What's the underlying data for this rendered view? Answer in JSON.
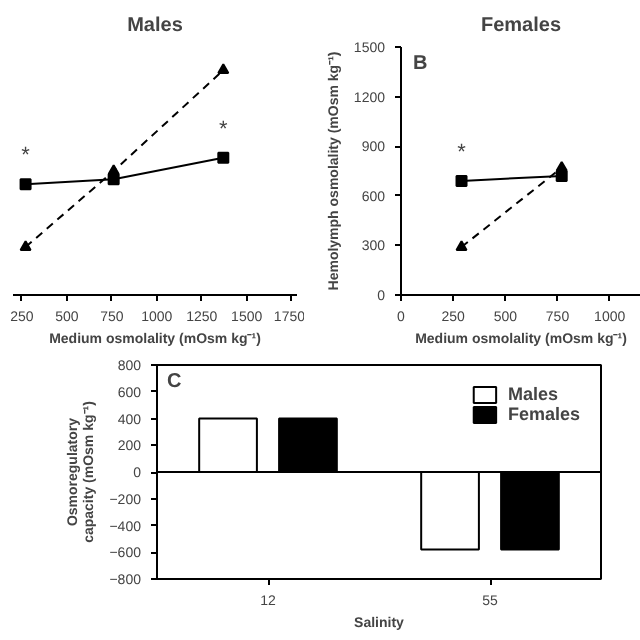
{
  "chart_data": [
    {
      "type": "line",
      "title": "Males",
      "xlabel": "Medium osmolality (mOsm kg⁻¹)",
      "xlim": [
        200,
        1780
      ],
      "xticks": [
        250,
        500,
        750,
        1000,
        1250,
        1500,
        1750
      ],
      "ylim": [
        0,
        1500
      ],
      "tick_labels": "x",
      "grid": false,
      "series": [
        {
          "color": "#000000",
          "marker": "square",
          "line_style": "solid",
          "x": [
            270,
            760,
            1370
          ],
          "values": [
            670,
            700,
            830
          ]
        },
        {
          "color": "#000000",
          "marker": "triangle",
          "line_style": "dashed",
          "x": [
            270,
            760,
            1370
          ],
          "values": [
            290,
            750,
            1360
          ]
        }
      ],
      "annotations": [
        {
          "text": "*",
          "x": 270,
          "y": 670
        },
        {
          "text": "*",
          "x": 1370,
          "y": 830
        }
      ]
    },
    {
      "type": "line",
      "title": "Females",
      "xlabel": "Medium osmolality (mOsm kg⁻¹)",
      "ylabel": "Hemolymph osmolality (mOsm kg⁻¹)",
      "xlim": [
        0,
        1150
      ],
      "xticks": [
        0,
        250,
        500,
        750,
        1000
      ],
      "ylim": [
        0,
        1500
      ],
      "yticks": [
        0,
        300,
        600,
        900,
        1200,
        1500
      ],
      "grid": false,
      "series": [
        {
          "color": "#000000",
          "marker": "square",
          "line_style": "solid",
          "x": [
            290,
            770
          ],
          "values": [
            690,
            720
          ]
        },
        {
          "color": "#000000",
          "marker": "triangle",
          "line_style": "dashed",
          "x": [
            290,
            770
          ],
          "values": [
            290,
            770
          ]
        }
      ],
      "annotations": [
        "B",
        {
          "text": "*",
          "x": 290,
          "y": 690
        }
      ]
    },
    {
      "type": "bar",
      "xlabel": "Salinity",
      "ylabel": "Osmoregulatory capacity (mOsm kg⁻¹)",
      "categories": [
        "12",
        "55"
      ],
      "ylim": [
        -800,
        800
      ],
      "yticks": [
        -800,
        -600,
        -400,
        -200,
        0,
        200,
        400,
        600,
        800
      ],
      "grid": false,
      "legend": "top right",
      "series": [
        {
          "name": "Males",
          "color": "#ffffff",
          "values": [
            400,
            -580
          ]
        },
        {
          "name": "Females",
          "color": "#000000",
          "values": [
            400,
            -580
          ]
        }
      ],
      "ref_lines": [
        {
          "axis": "y",
          "value": 0
        }
      ],
      "annotations": [
        "C"
      ]
    }
  ]
}
